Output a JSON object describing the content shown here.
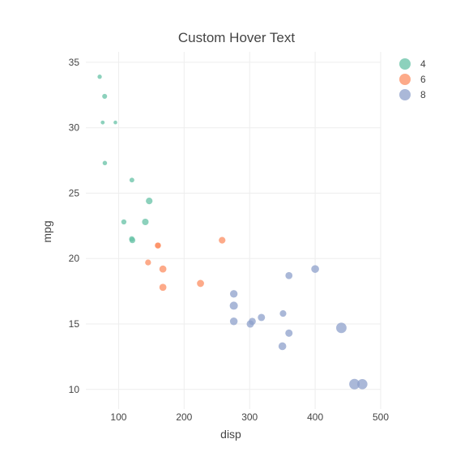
{
  "chart_data": {
    "type": "scatter",
    "title": "Custom Hover Text",
    "xlabel": "disp",
    "ylabel": "mpg",
    "xlim": [
      50,
      500
    ],
    "ylim": [
      8.5,
      35.8
    ],
    "x_ticks": [
      100,
      200,
      300,
      400,
      500
    ],
    "y_ticks": [
      10,
      15,
      20,
      25,
      30,
      35
    ],
    "grid": true,
    "legend_position": "top-right",
    "size_encoding": "wt",
    "series": [
      {
        "name": "4",
        "color": "#66c2a5",
        "points": [
          {
            "x": 71.1,
            "y": 33.9,
            "wt": 1.835
          },
          {
            "x": 75.7,
            "y": 30.4,
            "wt": 1.615
          },
          {
            "x": 78.7,
            "y": 32.4,
            "wt": 2.2
          },
          {
            "x": 79.0,
            "y": 27.3,
            "wt": 1.935
          },
          {
            "x": 95.1,
            "y": 30.4,
            "wt": 1.513
          },
          {
            "x": 108.0,
            "y": 22.8,
            "wt": 2.32
          },
          {
            "x": 120.1,
            "y": 21.5,
            "wt": 2.465
          },
          {
            "x": 120.3,
            "y": 26.0,
            "wt": 2.14
          },
          {
            "x": 121.0,
            "y": 21.4,
            "wt": 2.78
          },
          {
            "x": 140.8,
            "y": 22.8,
            "wt": 3.15
          },
          {
            "x": 146.7,
            "y": 24.4,
            "wt": 3.19
          }
        ]
      },
      {
        "name": "6",
        "color": "#fc8d62",
        "points": [
          {
            "x": 145.0,
            "y": 19.7,
            "wt": 2.77
          },
          {
            "x": 160.0,
            "y": 21.0,
            "wt": 2.62
          },
          {
            "x": 160.0,
            "y": 21.0,
            "wt": 2.875
          },
          {
            "x": 167.6,
            "y": 19.2,
            "wt": 3.44
          },
          {
            "x": 167.6,
            "y": 17.8,
            "wt": 3.44
          },
          {
            "x": 225.0,
            "y": 18.1,
            "wt": 3.46
          },
          {
            "x": 258.0,
            "y": 21.4,
            "wt": 3.215
          }
        ]
      },
      {
        "name": "8",
        "color": "#8da0cb",
        "points": [
          {
            "x": 275.8,
            "y": 16.4,
            "wt": 4.07
          },
          {
            "x": 275.8,
            "y": 17.3,
            "wt": 3.73
          },
          {
            "x": 275.8,
            "y": 15.2,
            "wt": 3.78
          },
          {
            "x": 301.0,
            "y": 15.0,
            "wt": 3.57
          },
          {
            "x": 304.0,
            "y": 15.2,
            "wt": 3.435
          },
          {
            "x": 318.0,
            "y": 15.5,
            "wt": 3.52
          },
          {
            "x": 350.0,
            "y": 13.3,
            "wt": 3.84
          },
          {
            "x": 351.0,
            "y": 15.8,
            "wt": 3.17
          },
          {
            "x": 360.0,
            "y": 18.7,
            "wt": 3.44
          },
          {
            "x": 360.0,
            "y": 14.3,
            "wt": 3.57
          },
          {
            "x": 400.0,
            "y": 19.2,
            "wt": 3.845
          },
          {
            "x": 440.0,
            "y": 14.7,
            "wt": 5.345
          },
          {
            "x": 460.0,
            "y": 10.4,
            "wt": 5.424
          },
          {
            "x": 472.0,
            "y": 10.4,
            "wt": 5.25
          }
        ]
      }
    ]
  }
}
